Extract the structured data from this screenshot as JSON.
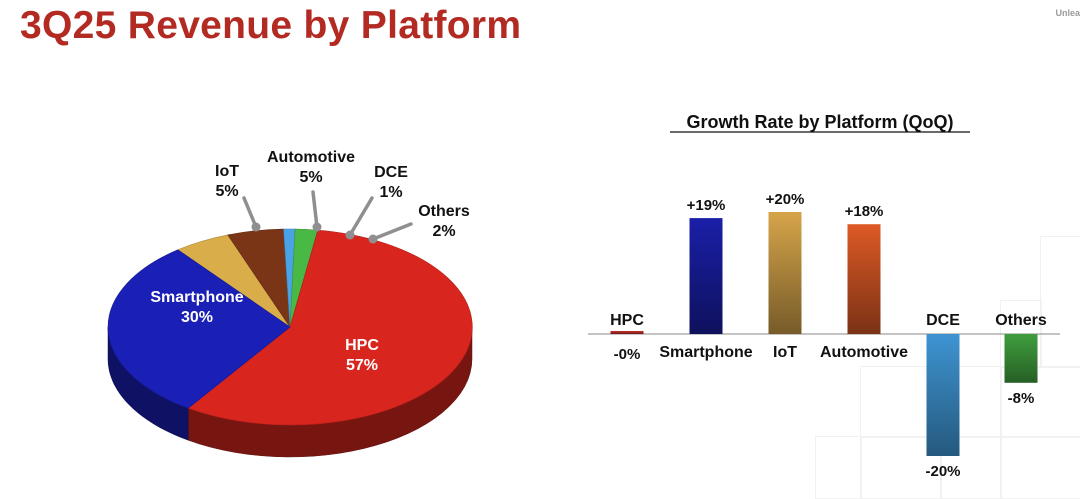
{
  "header": {
    "title": "3Q25 Revenue by Platform",
    "corner_text": "Unlea"
  },
  "chart_data": [
    {
      "type": "pie",
      "title": "",
      "slices": [
        {
          "label": "HPC",
          "value": 57,
          "value_label": "57%",
          "color": "#d8261f"
        },
        {
          "label": "Smartphone",
          "value": 30,
          "value_label": "30%",
          "color": "#1a1fb5"
        },
        {
          "label": "IoT",
          "value": 5,
          "value_label": "5%",
          "color": "#d9ad4a"
        },
        {
          "label": "Automotive",
          "value": 5,
          "value_label": "5%",
          "color": "#7a3517"
        },
        {
          "label": "DCE",
          "value": 1,
          "value_label": "1%",
          "color": "#4aa3e6"
        },
        {
          "label": "Others",
          "value": 2,
          "value_label": "2%",
          "color": "#49b845"
        }
      ]
    },
    {
      "type": "bar",
      "title": "Growth Rate by Platform (QoQ)",
      "categories": [
        "HPC",
        "Smartphone",
        "IoT",
        "Automotive",
        "DCE",
        "Others"
      ],
      "values": [
        0,
        19,
        20,
        18,
        -20,
        -8
      ],
      "value_labels": [
        "-0%",
        "+19%",
        "+20%",
        "+18%",
        "-20%",
        "-8%"
      ],
      "colors": [
        "#c8302a",
        "#1a1fa8",
        "#d6a54a",
        "#dd5a26",
        "#3e94d2",
        "#3f9e3d"
      ],
      "ylim": [
        -20,
        20
      ]
    }
  ]
}
